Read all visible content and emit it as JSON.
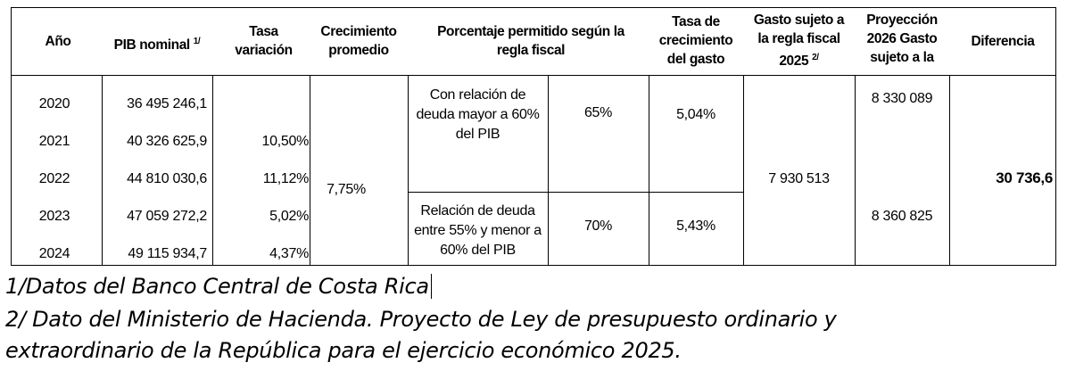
{
  "table": {
    "headers": {
      "anio": "Año",
      "pib": "PIB nominal",
      "pib_sup": "1/",
      "tasa": [
        "Tasa",
        "variación"
      ],
      "crecimiento": [
        "Crecimiento",
        "promedio"
      ],
      "porcentaje": [
        "Porcentaje permitido según la",
        "regla fiscal"
      ],
      "tasa_gasto": [
        "Tasa de",
        "crecimiento",
        "del gasto"
      ],
      "gasto": [
        "Gasto sujeto a",
        "la regla fiscal",
        "2025"
      ],
      "gasto_sup": "2/",
      "proyeccion": [
        "Proyección",
        "2026 Gasto",
        "sujeto a la"
      ],
      "diferencia": "Diferencia"
    },
    "years": [
      "2020",
      "2021",
      "2022",
      "2023",
      "2024"
    ],
    "pib": [
      "36 495 246,1",
      "40 326 625,9",
      "44 810 030,6",
      "47 059 272,2",
      "49 115 934,7"
    ],
    "tasa_variacion": [
      "",
      "10,50%",
      "11,12%",
      "5,02%",
      "4,37%"
    ],
    "crecimiento_promedio": "7,75%",
    "regla_1": {
      "label": [
        "Con relación de",
        "deuda mayor a 60%",
        "del PIB"
      ],
      "porcentaje": "65%",
      "tasa_gasto": "5,04%",
      "proyeccion": "8 330 089"
    },
    "regla_2": {
      "label": [
        "Relación de deuda",
        "entre 55% y menor a",
        "60% del PIB"
      ],
      "porcentaje": "70%",
      "tasa_gasto": "5,43%",
      "proyeccion": "8 360 825"
    },
    "gasto_2025": "7 930 513",
    "diferencia": "30 736,6"
  },
  "notes": {
    "note1": "1/Datos del Banco Central de Costa Rica",
    "note2_line1": "2/ Dato del Ministerio de Hacienda. Proyecto de Ley de presupuesto ordinario y",
    "note2_line2": "extraordinario de la República para el ejercicio económico 2025."
  }
}
